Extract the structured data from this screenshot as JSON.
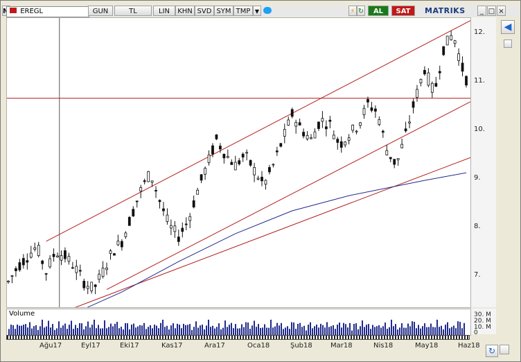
{
  "toolbar": {
    "symbol": "EREGL",
    "buttons": [
      "GUN",
      "TL",
      "LIN",
      "KHN",
      "SVD",
      "SYM",
      "TMP"
    ],
    "buy_label": "AL",
    "sell_label": "SAT",
    "brand": "MATRIKS",
    "colors": {
      "buy": "#1a7a1a",
      "sell": "#c21818",
      "accent": "#1a66cc"
    }
  },
  "panels": {
    "volume_label": "Volume"
  },
  "chart_data": {
    "type": "candlestick",
    "title": "",
    "y_ticks": [
      "12.",
      "11.",
      "10.",
      "9.",
      "8.",
      "7."
    ],
    "volume_ticks": [
      "30. M",
      "20. M",
      "10. M",
      "0"
    ],
    "x_ticks": [
      "Ağu17",
      "Eyl17",
      "Eki17",
      "Kas17",
      "Ara17",
      "Oca18",
      "Şub18",
      "Mar18",
      "Nis18",
      "May18",
      "Haz18"
    ],
    "ylim": [
      6.5,
      12.2
    ],
    "horizontal_line": 10.62,
    "price_path": [
      [
        0,
        7.0
      ],
      [
        5,
        7.3
      ],
      [
        10,
        7.5
      ],
      [
        15,
        7.7
      ],
      [
        20,
        7.2
      ],
      [
        25,
        7.6
      ],
      [
        30,
        7.5
      ],
      [
        35,
        7.3
      ],
      [
        40,
        7.0
      ],
      [
        45,
        6.85
      ],
      [
        50,
        7.2
      ],
      [
        55,
        7.6
      ],
      [
        60,
        7.8
      ],
      [
        65,
        8.3
      ],
      [
        70,
        8.8
      ],
      [
        75,
        9.15
      ],
      [
        80,
        8.6
      ],
      [
        85,
        8.1
      ],
      [
        90,
        7.9
      ],
      [
        95,
        8.2
      ],
      [
        100,
        8.8
      ],
      [
        105,
        9.3
      ],
      [
        110,
        9.8
      ],
      [
        115,
        9.5
      ],
      [
        120,
        9.3
      ],
      [
        125,
        9.5
      ],
      [
        130,
        9.2
      ],
      [
        135,
        8.9
      ],
      [
        140,
        9.3
      ],
      [
        145,
        9.8
      ],
      [
        150,
        10.3
      ],
      [
        155,
        10.0
      ],
      [
        160,
        9.8
      ],
      [
        165,
        10.2
      ],
      [
        170,
        10.1
      ],
      [
        175,
        9.7
      ],
      [
        180,
        9.9
      ],
      [
        185,
        10.1
      ],
      [
        190,
        10.5
      ],
      [
        195,
        10.35
      ],
      [
        200,
        9.6
      ],
      [
        205,
        9.3
      ],
      [
        210,
        9.9
      ],
      [
        215,
        10.6
      ],
      [
        220,
        11.2
      ],
      [
        225,
        10.7
      ],
      [
        230,
        11.6
      ],
      [
        235,
        11.9
      ],
      [
        240,
        11.2
      ],
      [
        242,
        11.0
      ]
    ],
    "ma_path": [
      [
        30,
        6.3
      ],
      [
        60,
        6.8
      ],
      [
        90,
        7.4
      ],
      [
        120,
        7.95
      ],
      [
        150,
        8.4
      ],
      [
        180,
        8.7
      ],
      [
        200,
        8.85
      ],
      [
        220,
        9.0
      ],
      [
        242,
        9.15
      ]
    ],
    "volume": [
      12,
      14,
      10,
      11,
      13,
      9,
      15,
      12,
      10,
      11,
      14,
      13,
      12,
      10,
      9,
      11,
      16,
      12,
      10,
      13,
      11,
      12,
      10,
      9,
      14,
      13,
      12,
      11,
      10,
      12,
      13,
      9,
      11,
      14,
      16,
      12,
      10,
      11,
      13,
      12
    ]
  }
}
